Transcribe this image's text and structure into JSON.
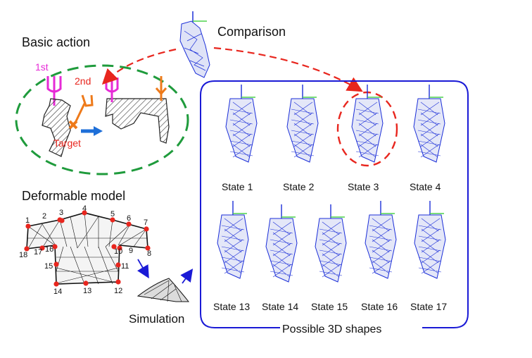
{
  "colors": {
    "accent_red": "#e8261e",
    "accent_green": "#1f9b3c",
    "accent_blue": "#1a1ad6",
    "gripper_magenta": "#e62ad6",
    "gripper_orange": "#ee7a1a",
    "mesh_blue": "#1c2fd8",
    "arrow_blue": "#1e6fd8",
    "axis_green": "#4fd24f"
  },
  "labels": {
    "basic_action": "Basic action",
    "first": "1st",
    "second": "2nd",
    "target": "Target",
    "comparison": "Comparison",
    "deformable_model": "Deformable model",
    "simulation": "Simulation",
    "possible_shapes": "Possible 3D shapes"
  },
  "states": [
    "State 1",
    "State 2",
    "State 3",
    "State 4",
    "State 13",
    "State 14",
    "State 15",
    "State 16",
    "State 17"
  ],
  "model_points": [
    "1",
    "2",
    "3",
    "4",
    "5",
    "6",
    "7",
    "8",
    "9",
    "10",
    "11",
    "12",
    "13",
    "14",
    "15",
    "16",
    "17",
    "18"
  ]
}
